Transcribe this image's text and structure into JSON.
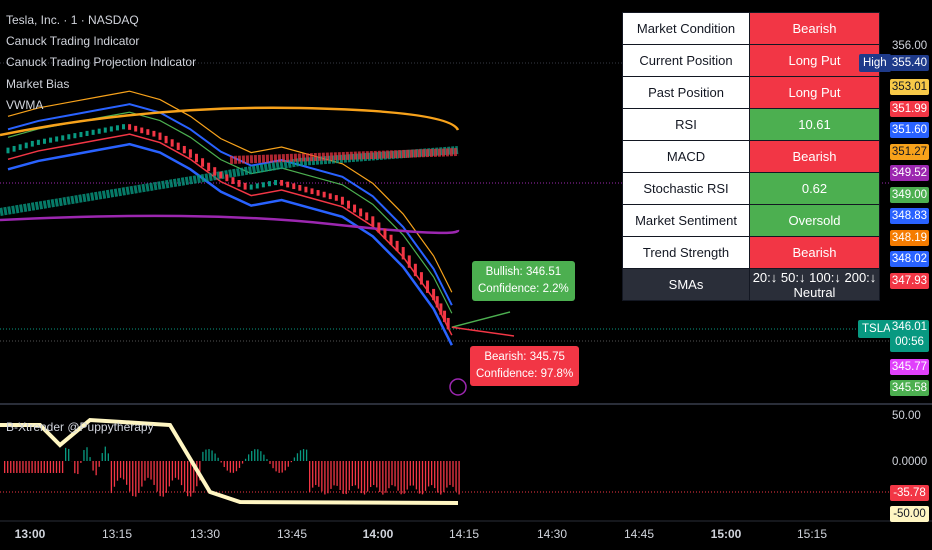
{
  "header": {
    "title": "Tesla, Inc. · 1 · NASDAQ",
    "indicators": [
      "Canuck Trading Indicator",
      "Canuck Trading Projection Indicator",
      "Market Bias",
      "VWMA"
    ]
  },
  "table": {
    "rows": [
      {
        "key": "Market Condition",
        "value": "Bearish",
        "color": "#f23645"
      },
      {
        "key": "Current Position",
        "value": "Long Put",
        "color": "#f23645"
      },
      {
        "key": "Past Position",
        "value": "Long Put",
        "color": "#f23645"
      },
      {
        "key": "RSI",
        "value": "10.61",
        "color": "#4caf50"
      },
      {
        "key": "MACD",
        "value": "Bearish",
        "color": "#f23645"
      },
      {
        "key": "Stochastic RSI",
        "value": "0.62",
        "color": "#4caf50"
      },
      {
        "key": "Market Sentiment",
        "value": "Oversold",
        "color": "#4caf50"
      },
      {
        "key": "Trend Strength",
        "value": "Bearish",
        "color": "#f23645"
      }
    ],
    "sma_key": "SMAs",
    "sma_value": "20:↓ 50:↓ 100:↓ 200:↓ Neutral"
  },
  "projection": {
    "bullish_line1": "Bullish: 346.51",
    "bullish_line2": "Confidence: 2.2%",
    "bearish_line1": "Bearish: 345.75",
    "bearish_line2": "Confidence: 97.8%"
  },
  "price_axis": {
    "top_value": "356.00",
    "high_label": "High",
    "high_value": "355.40",
    "symbol": "TSLA",
    "last_price": "346.01",
    "countdown": "00:56",
    "levels": [
      {
        "value": "353.01",
        "bg": "#f7c948",
        "fg": "#131722"
      },
      {
        "value": "351.99",
        "bg": "#f23645",
        "fg": "#ffffff"
      },
      {
        "value": "351.60",
        "bg": "#2962ff",
        "fg": "#ffffff"
      },
      {
        "value": "351.27",
        "bg": "#f7a21b",
        "fg": "#131722"
      },
      {
        "value": "349.52",
        "bg": "#9c27b0",
        "fg": "#ffffff"
      },
      {
        "value": "349.00",
        "bg": "#4caf50",
        "fg": "#ffffff"
      },
      {
        "value": "348.83",
        "bg": "#2962ff",
        "fg": "#ffffff"
      },
      {
        "value": "348.19",
        "bg": "#f57c00",
        "fg": "#ffffff"
      },
      {
        "value": "348.02",
        "bg": "#2962ff",
        "fg": "#ffffff"
      },
      {
        "value": "347.93",
        "bg": "#f23645",
        "fg": "#ffffff"
      }
    ],
    "lower_levels": [
      {
        "value": "345.77",
        "bg": "#e040fb",
        "fg": "#ffffff"
      },
      {
        "value": "345.58",
        "bg": "#4caf50",
        "fg": "#ffffff"
      }
    ]
  },
  "sub_pane": {
    "title": "B-Xtrender @Puppytherapy",
    "axis": [
      "50.00",
      "0.0000",
      "-35.78",
      "-50.00"
    ]
  },
  "time_axis": [
    "13:00",
    "13:15",
    "13:30",
    "13:45",
    "14:00",
    "14:15",
    "14:30",
    "14:45",
    "15:00",
    "15:15"
  ],
  "time_axis_bold": [
    "13:00",
    "14:00",
    "15:00"
  ],
  "chart_data": {
    "type": "line",
    "series": [
      {
        "name": "TSLA",
        "x": [
          "13:00",
          "13:05",
          "13:10",
          "13:15",
          "13:20",
          "13:25",
          "13:30",
          "13:35",
          "13:40",
          "13:45",
          "13:50",
          "13:55",
          "14:00",
          "14:05",
          "14:10",
          "14:13"
        ],
        "values": [
          352.3,
          352.6,
          352.8,
          353.0,
          353.2,
          352.9,
          352.3,
          351.5,
          351.0,
          351.2,
          350.9,
          350.6,
          349.9,
          348.8,
          347.3,
          346.0
        ]
      }
    ],
    "ylim": [
      345.5,
      356.0
    ]
  }
}
